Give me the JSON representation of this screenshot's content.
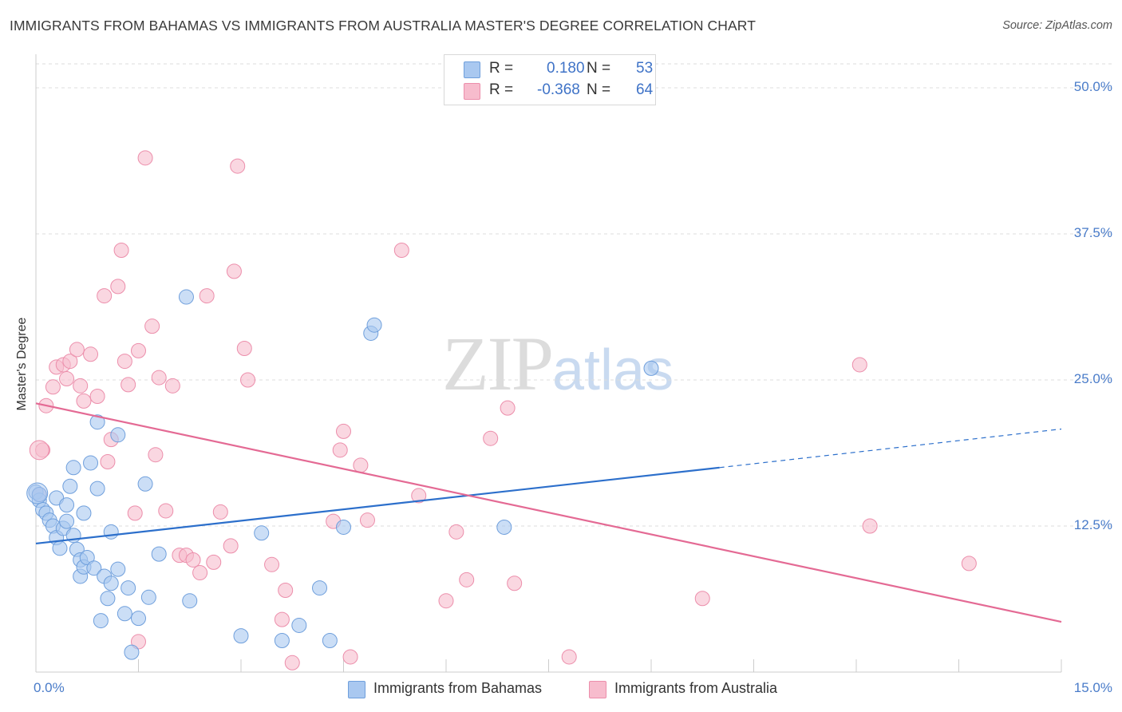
{
  "title": "IMMIGRANTS FROM BAHAMAS VS IMMIGRANTS FROM AUSTRALIA MASTER'S DEGREE CORRELATION CHART",
  "source": "Source: ZipAtlas.com",
  "watermark": {
    "zip": "ZIP",
    "atlas": "atlas"
  },
  "colors": {
    "bahamas_fill": "#a9c8f0",
    "bahamas_stroke": "#6f9fdc",
    "bahamas_line": "#2c6fcb",
    "australia_fill": "#f7bccd",
    "australia_stroke": "#ec8eab",
    "australia_line": "#e46a94",
    "tick_text": "#4a7cc9",
    "grid": "#dddddd"
  },
  "legend": {
    "rows": [
      {
        "r_label": "R =",
        "r_value": "0.180",
        "n_label": "N =",
        "n_value": "53"
      },
      {
        "r_label": "R =",
        "r_value": "-0.368",
        "n_label": "N =",
        "n_value": "64"
      }
    ]
  },
  "bottom_legend": {
    "bahamas": "Immigrants from Bahamas",
    "australia": "Immigrants from Australia"
  },
  "chart_data": {
    "type": "scatter",
    "title": "IMMIGRANTS FROM BAHAMAS VS IMMIGRANTS FROM AUSTRALIA MASTER'S DEGREE CORRELATION CHART",
    "xlabel": "",
    "ylabel": "Master's Degree",
    "xlim": [
      0,
      15
    ],
    "ylim": [
      0,
      50
    ],
    "x_tick_labels": [
      "0.0%",
      "15.0%"
    ],
    "y_ticks": [
      12.5,
      25.0,
      37.5,
      50.0
    ],
    "y_tick_labels": [
      "12.5%",
      "25.0%",
      "37.5%",
      "50.0%"
    ],
    "grid": true,
    "legend_position": "top-center",
    "series": [
      {
        "name": "Immigrants from Bahamas",
        "r": 0.18,
        "n": 53,
        "trend": {
          "x0": 0,
          "y0": 11.0,
          "x1": 10.0,
          "y1": 17.5,
          "dashed_to_x": 15.0,
          "dashed_to_y": 20.8
        },
        "points": [
          [
            0.0,
            15.4
          ],
          [
            0.05,
            14.7
          ],
          [
            0.1,
            13.9
          ],
          [
            0.15,
            13.6
          ],
          [
            0.2,
            13.0
          ],
          [
            0.25,
            12.5
          ],
          [
            0.3,
            14.9
          ],
          [
            0.3,
            11.5
          ],
          [
            0.35,
            10.6
          ],
          [
            0.4,
            12.3
          ],
          [
            0.45,
            14.3
          ],
          [
            0.45,
            12.9
          ],
          [
            0.5,
            15.9
          ],
          [
            0.55,
            11.7
          ],
          [
            0.55,
            17.5
          ],
          [
            0.6,
            10.5
          ],
          [
            0.65,
            8.2
          ],
          [
            0.65,
            9.6
          ],
          [
            0.7,
            13.6
          ],
          [
            0.7,
            9.0
          ],
          [
            0.75,
            9.8
          ],
          [
            0.8,
            17.9
          ],
          [
            0.85,
            8.9
          ],
          [
            0.9,
            21.4
          ],
          [
            0.9,
            15.7
          ],
          [
            0.95,
            4.4
          ],
          [
            1.0,
            8.2
          ],
          [
            1.05,
            6.3
          ],
          [
            1.1,
            7.6
          ],
          [
            1.1,
            12.0
          ],
          [
            1.2,
            20.3
          ],
          [
            1.2,
            8.8
          ],
          [
            1.3,
            5.0
          ],
          [
            1.35,
            7.2
          ],
          [
            1.4,
            1.7
          ],
          [
            1.5,
            4.6
          ],
          [
            1.6,
            16.1
          ],
          [
            1.65,
            6.4
          ],
          [
            1.8,
            10.1
          ],
          [
            2.2,
            32.1
          ],
          [
            2.25,
            6.1
          ],
          [
            3.0,
            3.1
          ],
          [
            3.3,
            11.9
          ],
          [
            3.6,
            2.7
          ],
          [
            3.85,
            4.0
          ],
          [
            4.15,
            7.2
          ],
          [
            4.3,
            2.7
          ],
          [
            4.5,
            12.4
          ],
          [
            4.9,
            29.0
          ],
          [
            4.95,
            29.7
          ],
          [
            6.85,
            12.4
          ],
          [
            9.0,
            26.0
          ],
          [
            0.05,
            15.2
          ]
        ]
      },
      {
        "name": "Immigrants from Australia",
        "r": -0.368,
        "n": 64,
        "trend": {
          "x0": 0,
          "y0": 23.0,
          "x1": 15.0,
          "y1": 4.3
        },
        "points": [
          [
            0.05,
            15.2
          ],
          [
            0.1,
            19.0
          ],
          [
            0.15,
            22.8
          ],
          [
            0.25,
            24.4
          ],
          [
            0.3,
            26.1
          ],
          [
            0.4,
            26.3
          ],
          [
            0.45,
            25.1
          ],
          [
            0.5,
            26.6
          ],
          [
            0.6,
            27.6
          ],
          [
            0.65,
            24.5
          ],
          [
            0.7,
            23.2
          ],
          [
            0.8,
            27.2
          ],
          [
            0.9,
            23.6
          ],
          [
            1.0,
            32.2
          ],
          [
            1.05,
            18.0
          ],
          [
            1.1,
            19.9
          ],
          [
            1.2,
            33.0
          ],
          [
            1.25,
            36.1
          ],
          [
            1.3,
            26.6
          ],
          [
            1.35,
            24.6
          ],
          [
            1.45,
            13.6
          ],
          [
            1.5,
            2.6
          ],
          [
            1.5,
            27.5
          ],
          [
            1.6,
            44.0
          ],
          [
            1.7,
            29.6
          ],
          [
            1.75,
            18.6
          ],
          [
            1.8,
            25.2
          ],
          [
            1.9,
            13.8
          ],
          [
            2.0,
            24.5
          ],
          [
            2.1,
            10.0
          ],
          [
            2.2,
            10.0
          ],
          [
            2.3,
            9.6
          ],
          [
            2.4,
            8.5
          ],
          [
            2.5,
            32.2
          ],
          [
            2.6,
            9.4
          ],
          [
            2.7,
            13.7
          ],
          [
            2.85,
            10.8
          ],
          [
            2.9,
            34.3
          ],
          [
            2.95,
            43.3
          ],
          [
            3.05,
            27.7
          ],
          [
            3.1,
            25.0
          ],
          [
            3.45,
            9.2
          ],
          [
            3.6,
            4.5
          ],
          [
            3.65,
            7.0
          ],
          [
            3.75,
            0.8
          ],
          [
            4.35,
            12.9
          ],
          [
            4.45,
            19.0
          ],
          [
            4.5,
            20.6
          ],
          [
            4.6,
            1.3
          ],
          [
            4.75,
            17.7
          ],
          [
            4.85,
            13.0
          ],
          [
            5.35,
            36.1
          ],
          [
            5.6,
            15.1
          ],
          [
            6.0,
            6.1
          ],
          [
            6.15,
            12.0
          ],
          [
            6.3,
            7.9
          ],
          [
            6.65,
            20.0
          ],
          [
            6.9,
            22.6
          ],
          [
            7.0,
            7.6
          ],
          [
            7.8,
            1.3
          ],
          [
            9.75,
            6.3
          ],
          [
            12.05,
            26.3
          ],
          [
            12.2,
            12.5
          ],
          [
            13.65,
            9.3
          ]
        ]
      }
    ]
  }
}
